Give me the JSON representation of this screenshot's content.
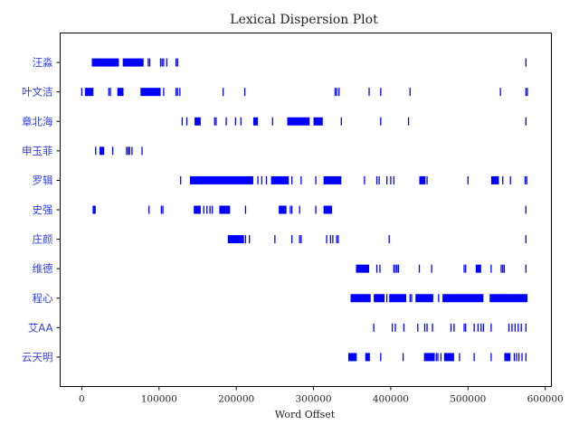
{
  "chart_data": {
    "type": "dispersion",
    "title": "Lexical Dispersion Plot",
    "xlabel": "Word Offset",
    "ylabel": "",
    "xlim": [
      -28000,
      608000
    ],
    "xticks": [
      0,
      100000,
      200000,
      300000,
      400000,
      500000,
      600000
    ],
    "xtick_labels": [
      "0",
      "100000",
      "200000",
      "300000",
      "400000",
      "500000",
      "600000"
    ],
    "label_color": "#2f3fe0",
    "mark_color": "#0000ff",
    "series": [
      {
        "name": "汪淼",
        "ranges": [
          [
            13000,
            48000
          ],
          [
            53000,
            80000
          ]
        ],
        "offsets": [
          86000,
          88000,
          102000,
          104000,
          106000,
          110000,
          122000,
          124000,
          575000
        ]
      },
      {
        "name": "叶文洁",
        "ranges": [
          [
            4000,
            15000
          ],
          [
            46000,
            54000
          ],
          [
            76000,
            102000
          ]
        ],
        "offsets": [
          0,
          35000,
          37000,
          106000,
          122000,
          124000,
          127000,
          183000,
          211000,
          328000,
          330000,
          333000,
          372000,
          387000,
          425000,
          542000,
          575000,
          577000
        ]
      },
      {
        "name": "章北海",
        "ranges": [
          [
            146000,
            154000
          ],
          [
            222000,
            228000
          ],
          [
            266000,
            295000
          ],
          [
            300000,
            312000
          ]
        ],
        "offsets": [
          130000,
          136000,
          172000,
          174000,
          187000,
          199000,
          206000,
          247000,
          336000,
          387000,
          423000,
          575000
        ]
      },
      {
        "name": "申玉菲",
        "ranges": [
          [
            23000,
            29000
          ]
        ],
        "offsets": [
          18000,
          40000,
          58000,
          60000,
          62000,
          65000,
          78000
        ]
      },
      {
        "name": "罗辑",
        "ranges": [
          [
            140000,
            222000
          ],
          [
            245000,
            268000
          ],
          [
            313000,
            336000
          ],
          [
            437000,
            445000
          ],
          [
            530000,
            540000
          ]
        ],
        "offsets": [
          128000,
          228000,
          233000,
          239000,
          272000,
          284000,
          303000,
          366000,
          382000,
          385000,
          395000,
          400000,
          404000,
          447000,
          500000,
          545000,
          555000,
          574000,
          576000
        ]
      },
      {
        "name": "史强",
        "ranges": [
          [
            14000,
            18000
          ],
          [
            145000,
            154000
          ],
          [
            178000,
            192000
          ],
          [
            255000,
            265000
          ],
          [
            313000,
            324000
          ]
        ],
        "offsets": [
          87000,
          103000,
          105000,
          158000,
          162000,
          166000,
          169000,
          212000,
          270000,
          272000,
          282000,
          303000,
          575000
        ]
      },
      {
        "name": "庄颜",
        "ranges": [
          [
            189000,
            210000
          ]
        ],
        "offsets": [
          212000,
          217000,
          250000,
          272000,
          282000,
          284000,
          317000,
          322000,
          325000,
          330000,
          332000,
          398000,
          575000
        ]
      },
      {
        "name": "维德",
        "ranges": [
          [
            355000,
            372000
          ],
          [
            510000,
            517000
          ]
        ],
        "offsets": [
          382000,
          386000,
          404000,
          406000,
          408000,
          410000,
          437000,
          453000,
          495000,
          497000,
          530000,
          543000,
          545000,
          547000,
          575000
        ]
      },
      {
        "name": "程心",
        "ranges": [
          [
            348000,
            374000
          ],
          [
            378000,
            392000
          ],
          [
            398000,
            420000
          ],
          [
            432000,
            455000
          ],
          [
            467000,
            520000
          ],
          [
            528000,
            577000
          ]
        ],
        "offsets": [
          395000,
          425000,
          427000,
          462000
        ]
      },
      {
        "name": "艾AA",
        "ranges": [],
        "offsets": [
          378000,
          402000,
          406000,
          417000,
          435000,
          444000,
          447000,
          454000,
          478000,
          482000,
          495000,
          497000,
          508000,
          513000,
          517000,
          520000,
          530000,
          553000,
          557000,
          561000,
          565000,
          569000,
          575000
        ]
      },
      {
        "name": "云天明",
        "ranges": [
          [
            345000,
            356000
          ],
          [
            367000,
            373000
          ],
          [
            443000,
            457000
          ],
          [
            469000,
            482000
          ],
          [
            547000,
            555000
          ]
        ],
        "offsets": [
          387000,
          416000,
          459000,
          461000,
          465000,
          489000,
          508000,
          530000,
          560000,
          563000,
          566000,
          570000,
          575000
        ]
      }
    ]
  }
}
